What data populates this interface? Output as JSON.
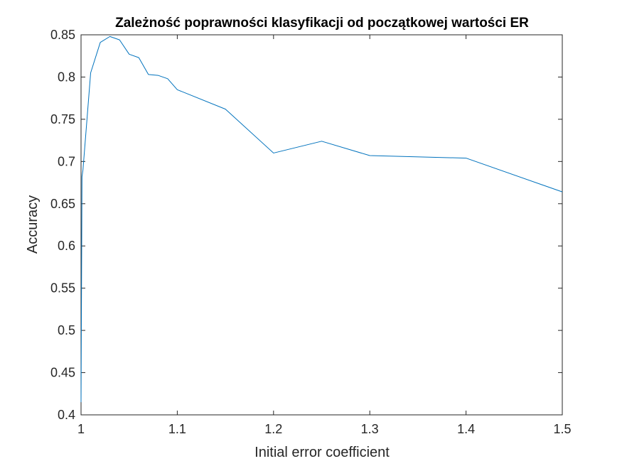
{
  "chart_data": {
    "type": "line",
    "title": "Zależność poprawności klasyfikacji od początkowej wartości ER",
    "xlabel": "Initial error coefficient",
    "ylabel": "Accuracy",
    "xlim": [
      1,
      1.5
    ],
    "ylim": [
      0.4,
      0.85
    ],
    "xticks": [
      1,
      1.1,
      1.2,
      1.3,
      1.4,
      1.5
    ],
    "xtick_labels": [
      "1",
      "1.1",
      "1.2",
      "1.3",
      "1.4",
      "1.5"
    ],
    "yticks": [
      0.4,
      0.45,
      0.5,
      0.55,
      0.6,
      0.65,
      0.7,
      0.75,
      0.8,
      0.85
    ],
    "ytick_labels": [
      "0.4",
      "0.45",
      "0.5",
      "0.55",
      "0.6",
      "0.65",
      "0.7",
      "0.75",
      "0.8",
      "0.85"
    ],
    "grid": false,
    "series": [
      {
        "color": "#0072BD",
        "x": [
          1.0,
          1.001,
          1.002,
          1.01,
          1.02,
          1.03,
          1.04,
          1.05,
          1.06,
          1.07,
          1.08,
          1.09,
          1.1,
          1.15,
          1.2,
          1.25,
          1.3,
          1.4,
          1.5
        ],
        "y": [
          0.415,
          0.682,
          0.69,
          0.805,
          0.841,
          0.848,
          0.844,
          0.827,
          0.823,
          0.803,
          0.802,
          0.798,
          0.785,
          0.762,
          0.71,
          0.724,
          0.707,
          0.704,
          0.664
        ]
      }
    ]
  }
}
